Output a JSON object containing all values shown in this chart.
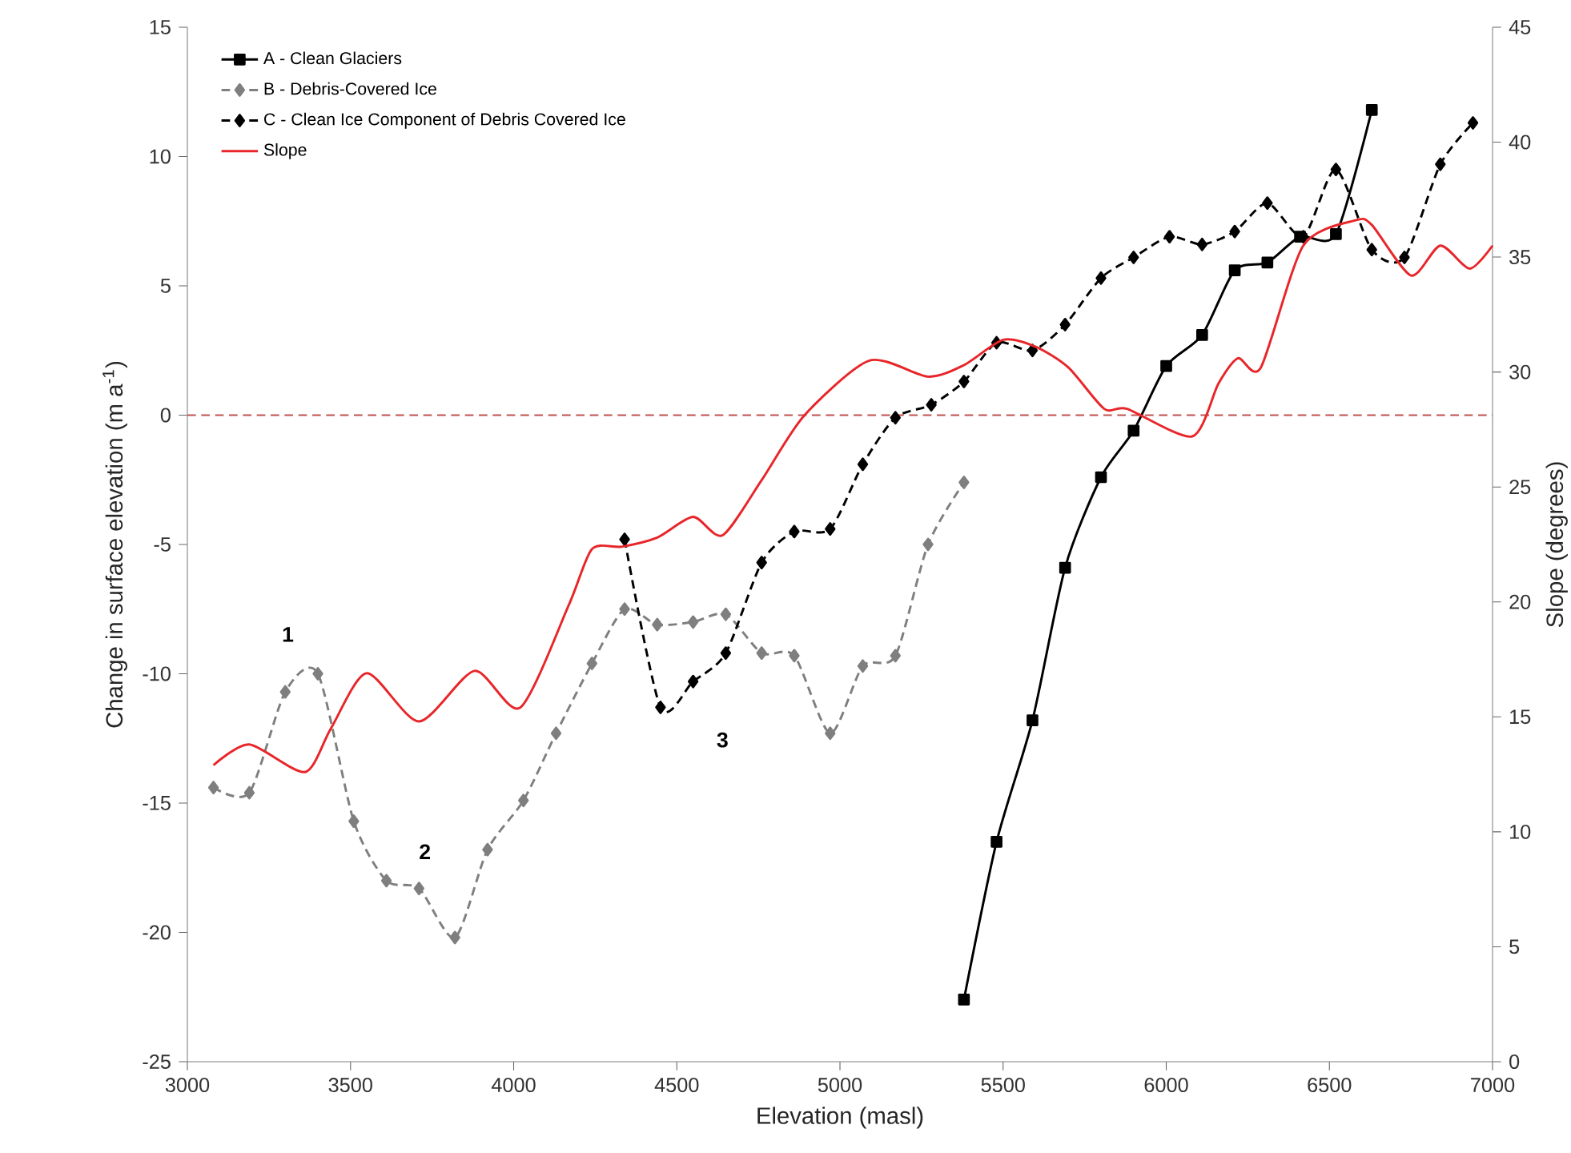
{
  "chart_data": {
    "type": "line",
    "xlabel": "Elevation (masl)",
    "ylabel": "Change in surface elevation (m a$^{-1}$)",
    "y2label": "Slope (degrees)",
    "xlim": [
      3000,
      7000
    ],
    "xticks": [
      3000,
      3500,
      4000,
      4500,
      5000,
      5500,
      6000,
      6500,
      7000
    ],
    "ylim": [
      -25,
      15
    ],
    "yticks": [
      -25,
      -20,
      -15,
      -10,
      -5,
      0,
      5,
      10,
      15
    ],
    "y2lim": [
      0,
      45
    ],
    "y2ticks": [
      0,
      5,
      10,
      15,
      20,
      25,
      30,
      35,
      40,
      45
    ],
    "legend": "top left",
    "grid": false,
    "ref_lines": [
      {
        "axis": "y",
        "value": 0,
        "color": "#c0504d",
        "line_style": "dashed"
      }
    ],
    "annotations": [
      "1",
      "2",
      "3"
    ],
    "series": [
      {
        "name": "A - Clean Glaciers",
        "color": "#000000",
        "marker": "square",
        "line_style": "solid",
        "x": [
          5380,
          5480,
          5590,
          5690,
          5800,
          5900,
          6000,
          6110,
          6210,
          6310,
          6410,
          6520,
          6630
        ],
        "values": [
          -22.6,
          -16.5,
          -11.8,
          -5.9,
          -2.4,
          -0.6,
          1.9,
          3.1,
          5.6,
          5.9,
          6.9,
          7.0,
          11.8
        ]
      },
      {
        "name": "B - Debris-Covered Ice",
        "color": "#7f7f7f",
        "marker": "diamond",
        "line_style": "dashed",
        "x": [
          3080,
          3190,
          3300,
          3400,
          3510,
          3610,
          3710,
          3820,
          3920,
          4030,
          4130,
          4240,
          4340,
          4440,
          4550,
          4650,
          4760,
          4860,
          4970,
          5070,
          5170,
          5270,
          5380
        ],
        "values": [
          -14.4,
          -14.6,
          -10.7,
          -10.0,
          -15.7,
          -18.0,
          -18.3,
          -20.2,
          -16.8,
          -14.9,
          -12.3,
          -9.6,
          -7.5,
          -8.1,
          -8.0,
          -7.7,
          -9.2,
          -9.3,
          -12.3,
          -9.7,
          -9.3,
          -5.0,
          -2.6
        ]
      },
      {
        "name": "C - Clean Ice Component of Debris Covered Ice",
        "color": "#000000",
        "marker": "diamond",
        "line_style": "dashed",
        "x": [
          4340,
          4450,
          4550,
          4650,
          4760,
          4860,
          4970,
          5070,
          5170,
          5280,
          5380,
          5480,
          5590,
          5690,
          5800,
          5900,
          6010,
          6110,
          6210,
          6310,
          6420,
          6520,
          6630,
          6730,
          6840,
          6940
        ],
        "values": [
          -4.8,
          -11.3,
          -10.3,
          -9.2,
          -5.7,
          -4.5,
          -4.4,
          -1.9,
          -0.1,
          0.4,
          1.3,
          2.8,
          2.5,
          3.5,
          5.3,
          6.1,
          6.9,
          6.6,
          7.1,
          8.2,
          6.9,
          9.5,
          6.4,
          6.1,
          9.7,
          11.3
        ]
      },
      {
        "name": "Slope",
        "color": "#e8262a",
        "marker": "none",
        "line_style": "solid",
        "axis": "y2",
        "x": [
          3080,
          3190,
          3360,
          3440,
          3550,
          3710,
          3880,
          4020,
          4170,
          4240,
          4330,
          4440,
          4550,
          4640,
          4760,
          4890,
          5090,
          5270,
          5380,
          5500,
          5600,
          5700,
          5810,
          5880,
          6080,
          6160,
          6220,
          6290,
          6420,
          6580,
          6630,
          6750,
          6840,
          6930,
          7000
        ],
        "values": [
          12.9,
          13.8,
          12.6,
          14.5,
          16.9,
          14.8,
          17.0,
          15.4,
          19.9,
          22.3,
          22.4,
          22.8,
          23.7,
          22.9,
          25.3,
          28.1,
          30.5,
          29.8,
          30.3,
          31.4,
          31.1,
          30.2,
          28.4,
          28.4,
          27.2,
          29.5,
          30.6,
          30.2,
          35.5,
          36.6,
          36.4,
          34.2,
          35.5,
          34.5,
          35.5
        ]
      }
    ]
  }
}
